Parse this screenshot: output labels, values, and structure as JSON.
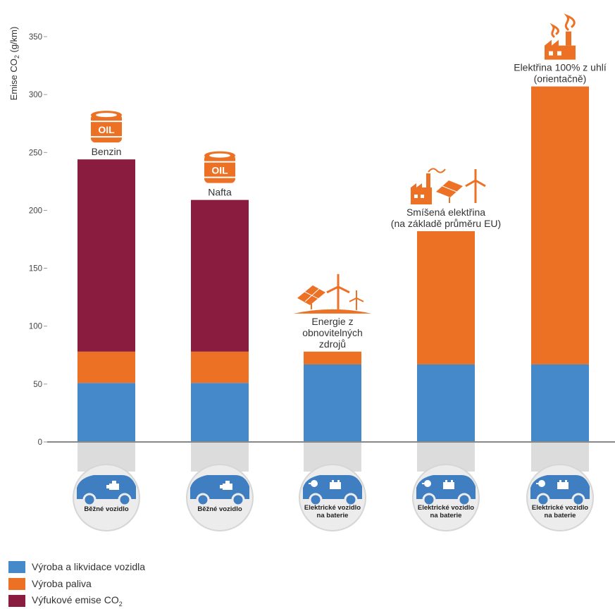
{
  "chart_data": {
    "type": "bar",
    "stacked": true,
    "ylabel": "Emise CO₂ (g/km)",
    "ylim": [
      0,
      350
    ],
    "yticks": [
      0,
      50,
      100,
      150,
      200,
      250,
      300,
      350
    ],
    "grid": false,
    "legend_position": "bottom-left",
    "series": [
      {
        "name": "Výroba a likvidace vozidla",
        "color": "#4689cb",
        "values": [
          51,
          51,
          67,
          67,
          67
        ]
      },
      {
        "name": "Výroba paliva",
        "color": "#ec7125",
        "values": [
          27,
          27,
          11,
          115,
          240
        ]
      },
      {
        "name": "Výfukové emise CO₂",
        "color": "#8a1c3f",
        "values": [
          166,
          131,
          0,
          0,
          0
        ]
      }
    ],
    "annotations": [
      {
        "lines": [
          "Benzin"
        ],
        "icon": "oil-barrel-icon"
      },
      {
        "lines": [
          "Nafta"
        ],
        "icon": "oil-barrel-icon"
      },
      {
        "lines": [
          "Energie z",
          "obnovitelných",
          "zdrojů"
        ],
        "icon": "solar-wind-icon"
      },
      {
        "lines": [
          "Smíšená elektřina",
          "(na základě průměru EU)"
        ],
        "icon": "factory-solar-wind-icon"
      },
      {
        "lines": [
          "Elektřina 100% z uhlí",
          "(orientačně)"
        ],
        "icon": "factory-smoke-icon"
      }
    ],
    "icon_text": "OIL",
    "categories": [
      {
        "lines": [
          "Běžné vozidlo"
        ],
        "icon": "car-engine-icon"
      },
      {
        "lines": [
          "Běžné vozidlo"
        ],
        "icon": "car-engine-icon"
      },
      {
        "lines": [
          "Elektrické vozidlo",
          "na baterie"
        ],
        "icon": "electric-car-icon"
      },
      {
        "lines": [
          "Elektrické vozidlo",
          "na baterie"
        ],
        "icon": "electric-car-icon"
      },
      {
        "lines": [
          "Elektrické vozidlo",
          "na baterie"
        ],
        "icon": "electric-car-icon"
      }
    ]
  },
  "legend": {
    "items": [
      {
        "label": "Výroba a likvidace vozidla",
        "color": "#4689cb"
      },
      {
        "label": "Výroba paliva",
        "color": "#ec7125"
      },
      {
        "label_main": "Výfukové emise CO",
        "label_sub": "2",
        "color": "#8a1c3f"
      }
    ]
  }
}
